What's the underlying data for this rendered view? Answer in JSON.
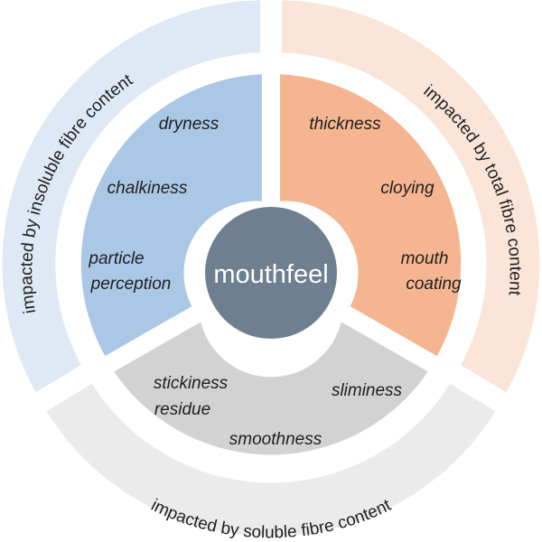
{
  "center": {
    "label": "mouthfeel",
    "color": "#6e7f91"
  },
  "outer_ring": [
    {
      "label": "impacted by insoluble fibre content",
      "color": "#dfe9f5"
    },
    {
      "label": "impacted by total fibre content",
      "color": "#fbe4d8"
    },
    {
      "label": "impacted by soluble fibre content",
      "color": "#ebebeb"
    }
  ],
  "sectors": {
    "insoluble": {
      "color": "#abc7e6",
      "terms": [
        "dryness",
        "chalkiness",
        "particle",
        "perception"
      ]
    },
    "total": {
      "color": "#f4b590",
      "terms": [
        "thickness",
        "cloying",
        "mouth",
        "coating"
      ]
    },
    "soluble": {
      "color": "#d2d2d2",
      "terms": [
        "stickiness",
        "residue",
        "sliminess",
        "smoothness"
      ]
    }
  }
}
